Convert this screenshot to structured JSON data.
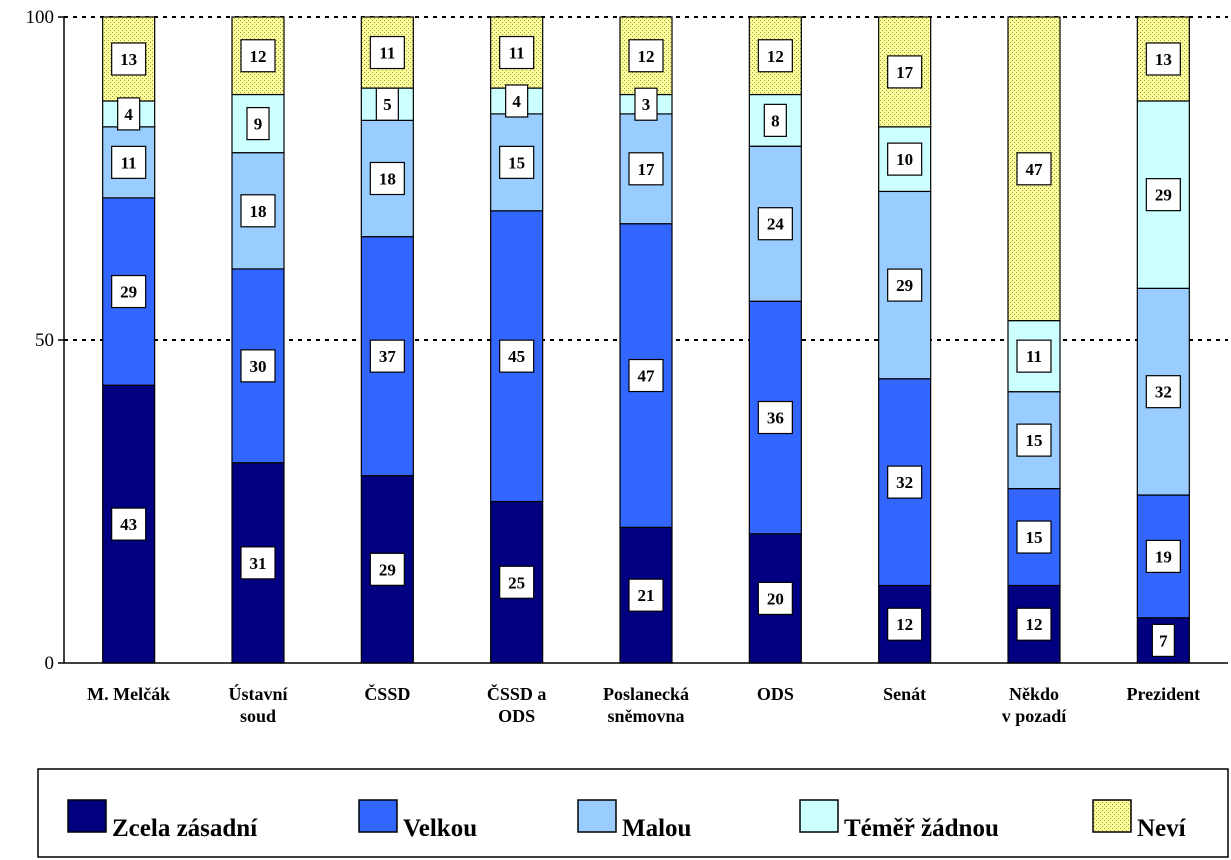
{
  "chart_data": {
    "type": "bar",
    "stacked": true,
    "categories": [
      [
        "M. Melčák"
      ],
      [
        "Ústavní",
        "soud"
      ],
      [
        "ČSSD"
      ],
      [
        "ČSSD a",
        "ODS"
      ],
      [
        "Poslanecká",
        "sněmovna"
      ],
      [
        "ODS"
      ],
      [
        "Senát"
      ],
      [
        "Někdo",
        "v pozadí"
      ],
      [
        "Prezident"
      ]
    ],
    "series": [
      {
        "name": "Zcela zásadní",
        "color": "#000080",
        "values": [
          43,
          31,
          29,
          25,
          21,
          20,
          12,
          12,
          7
        ]
      },
      {
        "name": "Velkou",
        "color": "#3366ff",
        "values": [
          29,
          30,
          37,
          45,
          47,
          36,
          32,
          15,
          19
        ]
      },
      {
        "name": "Malou",
        "color": "#99ccff",
        "values": [
          11,
          18,
          18,
          15,
          17,
          24,
          29,
          15,
          32
        ]
      },
      {
        "name": "Téměř žádnou",
        "color": "#ccffff",
        "values": [
          4,
          9,
          5,
          4,
          3,
          8,
          10,
          11,
          29
        ]
      },
      {
        "name": "Neví",
        "color": "#ffff99",
        "pattern": "dotted",
        "values": [
          13,
          12,
          11,
          11,
          12,
          12,
          17,
          47,
          13
        ]
      }
    ],
    "ylim": [
      0,
      100
    ],
    "yticks": [
      0,
      50,
      100
    ],
    "gridlines": [
      50,
      100
    ],
    "grid_style": "dashed",
    "legend_position": "bottom",
    "data_labels": true
  }
}
